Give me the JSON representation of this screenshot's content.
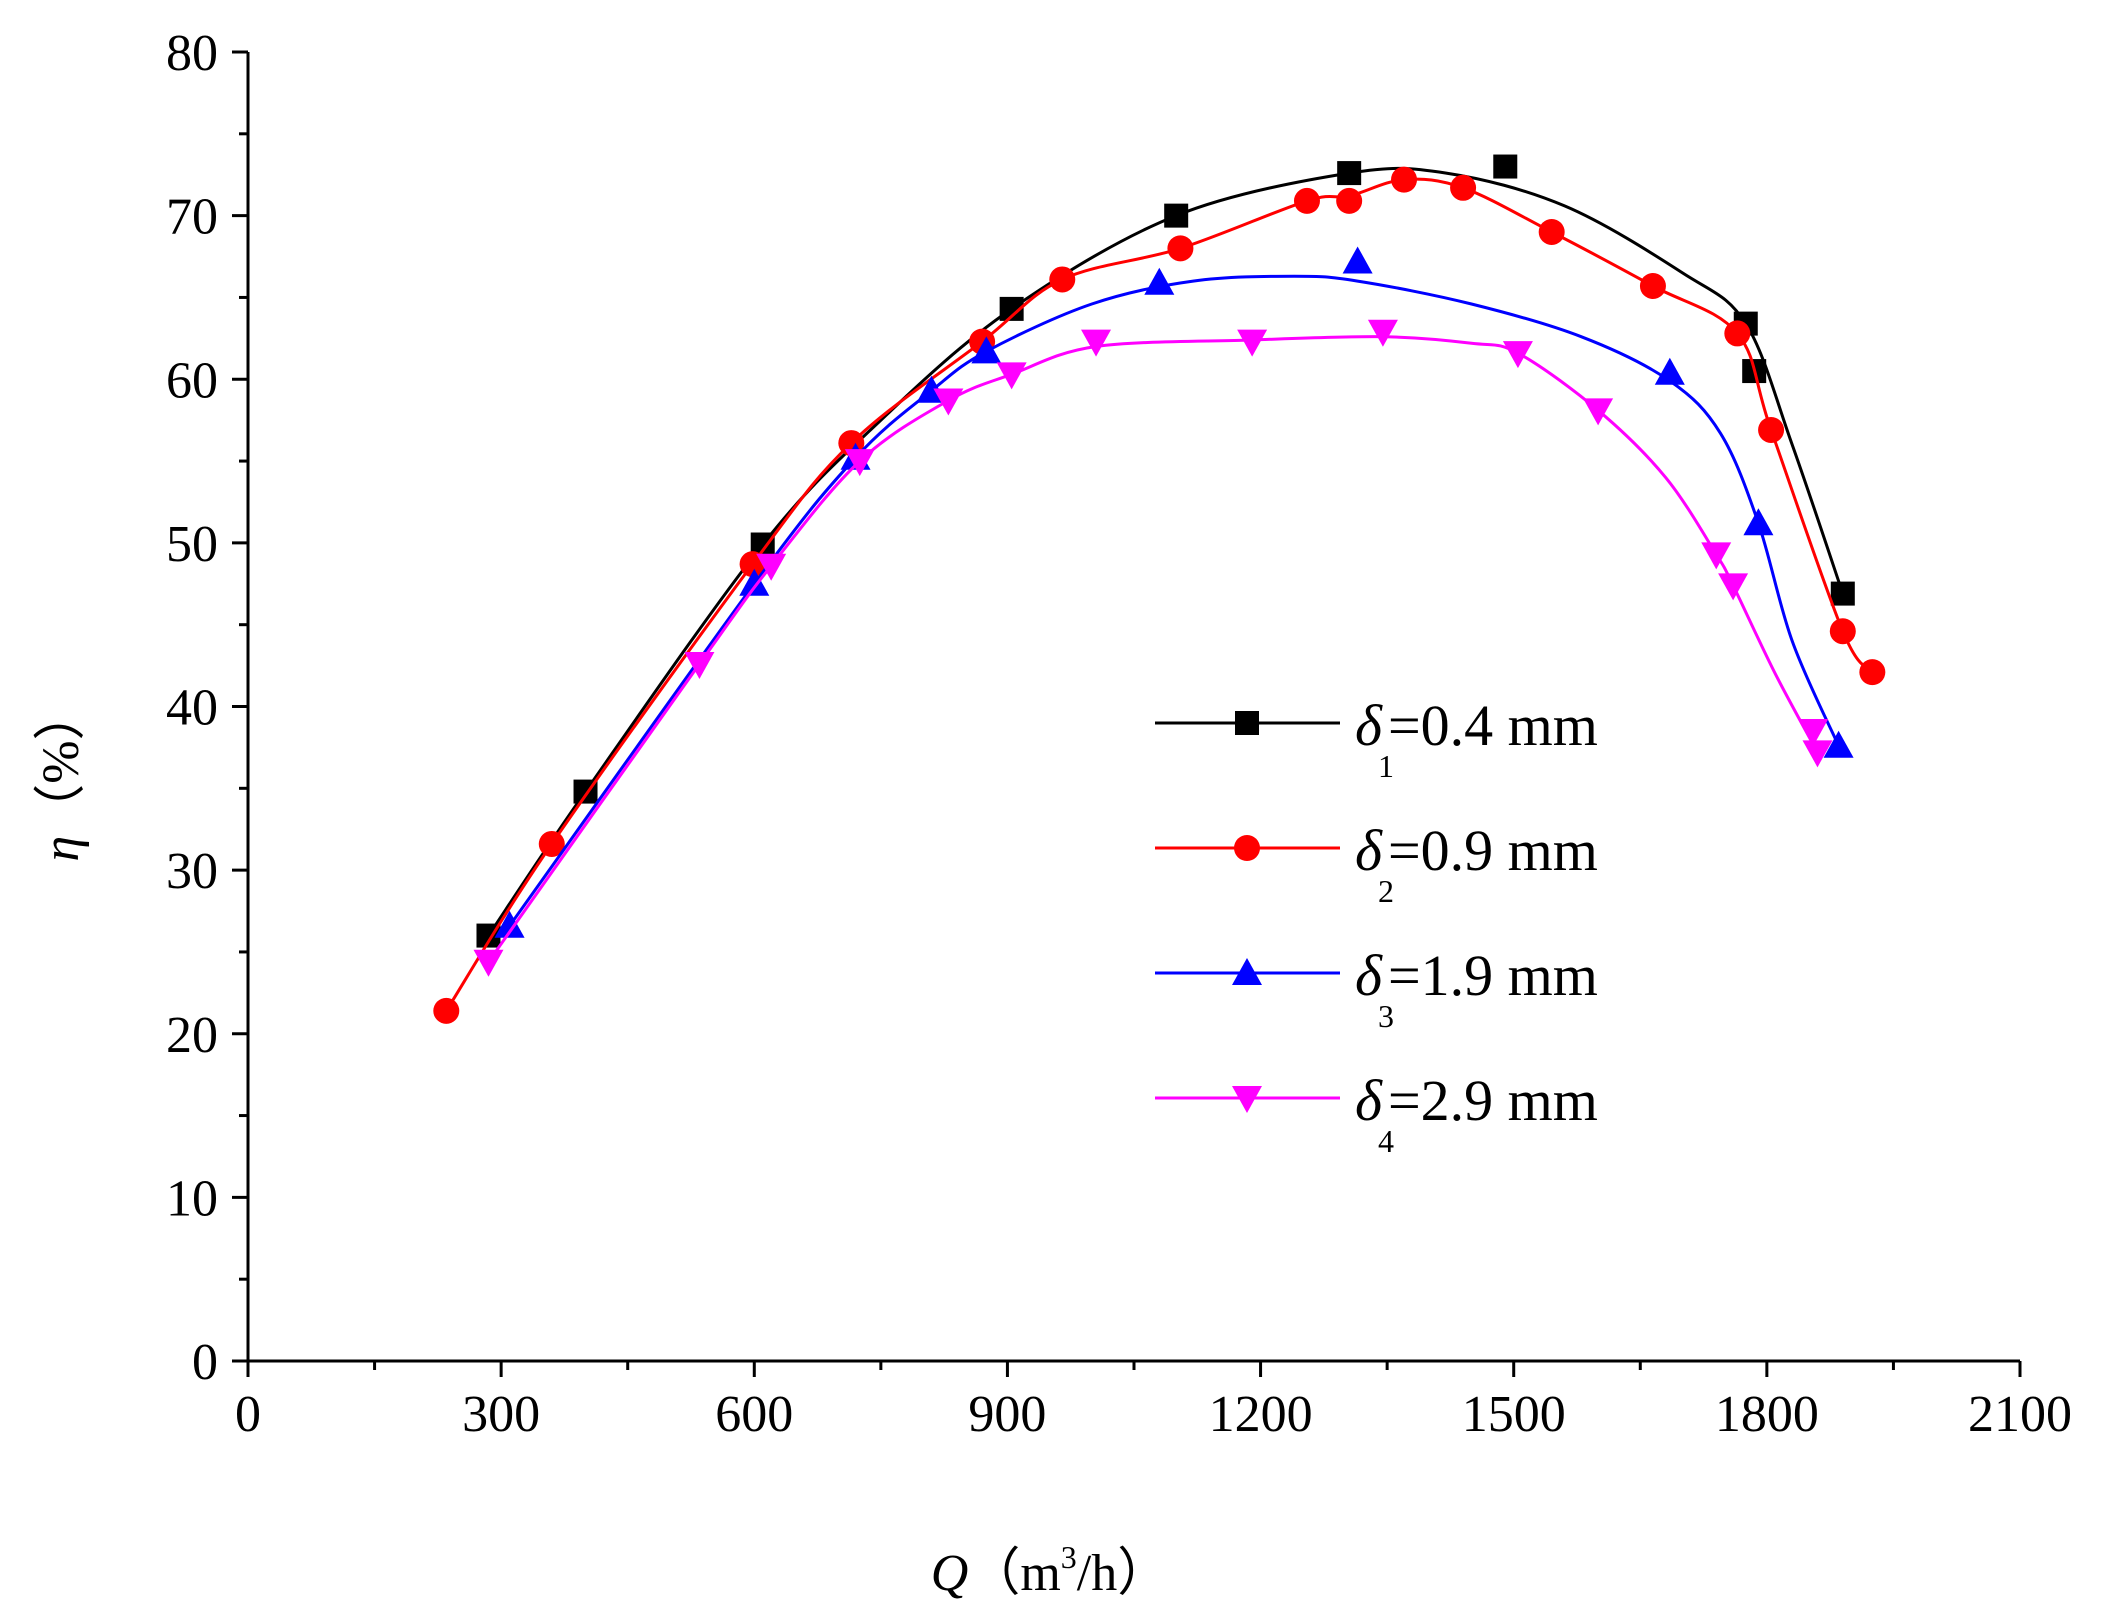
{
  "chart_data": {
    "type": "line",
    "title": "",
    "xlabel": {
      "symbol": "Q",
      "unit_pre": "（m",
      "unit_sup": "3",
      "unit_post": "/h）"
    },
    "ylabel": {
      "symbol": "η",
      "unit": "（%）"
    },
    "xlim": [
      0,
      2100
    ],
    "ylim": [
      0,
      80
    ],
    "x_ticks": [
      0,
      300,
      600,
      900,
      1200,
      1500,
      1800,
      2100
    ],
    "x_tick_labels": [
      "0",
      "300",
      "600",
      "900",
      "1200",
      "1500",
      "1800",
      "2100"
    ],
    "y_ticks": [
      0,
      10,
      20,
      30,
      40,
      50,
      60,
      70,
      80
    ],
    "y_tick_labels": [
      "0",
      "10",
      "20",
      "30",
      "40",
      "50",
      "60",
      "70",
      "80"
    ],
    "grid": false,
    "legend_position": "middle-right",
    "series": [
      {
        "name": "δ1=0.4 mm",
        "legend": {
          "symbol": "δ",
          "sub": "1",
          "text": "=0.4 mm"
        },
        "color": "#000000",
        "marker": "square",
        "points": [
          [
            285,
            26.0
          ],
          [
            400,
            34.8
          ],
          [
            610,
            49.9
          ],
          [
            905,
            64.3
          ],
          [
            1100,
            70.0
          ],
          [
            1305,
            72.6
          ],
          [
            1490,
            73.0
          ],
          [
            1775,
            63.4
          ],
          [
            1785,
            60.5
          ],
          [
            1890,
            46.9
          ]
        ],
        "curve": [
          [
            285,
            26.0
          ],
          [
            400,
            34.8
          ],
          [
            610,
            49.9
          ],
          [
            750,
            57.5
          ],
          [
            905,
            64.3
          ],
          [
            1100,
            70.0
          ],
          [
            1305,
            72.6
          ],
          [
            1420,
            72.6
          ],
          [
            1560,
            70.6
          ],
          [
            1700,
            66.5
          ],
          [
            1775,
            63.4
          ],
          [
            1830,
            56.0
          ],
          [
            1890,
            46.9
          ]
        ]
      },
      {
        "name": "δ2=0.9 mm",
        "legend": {
          "symbol": "δ",
          "sub": "2",
          "text": "=0.9 mm"
        },
        "color": "#ff0000",
        "marker": "circle",
        "points": [
          [
            235,
            21.4
          ],
          [
            360,
            31.6
          ],
          [
            598,
            48.7
          ],
          [
            715,
            56.1
          ],
          [
            870,
            62.3
          ],
          [
            965,
            66.1
          ],
          [
            1105,
            68.0
          ],
          [
            1255,
            70.9
          ],
          [
            1305,
            70.9
          ],
          [
            1370,
            72.2
          ],
          [
            1440,
            71.7
          ],
          [
            1545,
            69.0
          ],
          [
            1665,
            65.7
          ],
          [
            1765,
            62.8
          ],
          [
            1805,
            56.9
          ],
          [
            1890,
            44.6
          ],
          [
            1925,
            42.1
          ]
        ],
        "curve": [
          [
            235,
            21.4
          ],
          [
            360,
            31.6
          ],
          [
            598,
            48.7
          ],
          [
            715,
            56.1
          ],
          [
            870,
            62.3
          ],
          [
            965,
            66.1
          ],
          [
            1105,
            68.0
          ],
          [
            1255,
            70.9
          ],
          [
            1305,
            71.2
          ],
          [
            1370,
            72.2
          ],
          [
            1440,
            71.7
          ],
          [
            1545,
            69.0
          ],
          [
            1665,
            65.7
          ],
          [
            1765,
            62.8
          ],
          [
            1805,
            56.9
          ],
          [
            1890,
            44.6
          ],
          [
            1925,
            42.1
          ]
        ]
      },
      {
        "name": "δ3=1.9 mm",
        "legend": {
          "symbol": "δ",
          "sub": "3",
          "text": "=1.9 mm"
        },
        "color": "#0000ff",
        "marker": "triangle-up",
        "points": [
          [
            310,
            26.6
          ],
          [
            600,
            47.5
          ],
          [
            720,
            55.2
          ],
          [
            810,
            59.3
          ],
          [
            875,
            61.7
          ],
          [
            1080,
            65.9
          ],
          [
            1315,
            67.2
          ],
          [
            1685,
            60.4
          ],
          [
            1790,
            51.2
          ],
          [
            1885,
            37.6
          ]
        ],
        "curve": [
          [
            310,
            26.6
          ],
          [
            600,
            47.5
          ],
          [
            720,
            55.2
          ],
          [
            810,
            59.3
          ],
          [
            875,
            61.7
          ],
          [
            1000,
            64.6
          ],
          [
            1120,
            66.0
          ],
          [
            1240,
            66.3
          ],
          [
            1315,
            66.0
          ],
          [
            1450,
            64.6
          ],
          [
            1580,
            62.6
          ],
          [
            1685,
            59.9
          ],
          [
            1745,
            56.7
          ],
          [
            1790,
            51.2
          ],
          [
            1830,
            44.0
          ],
          [
            1885,
            37.6
          ]
        ]
      },
      {
        "name": "δ4=2.9 mm",
        "legend": {
          "symbol": "δ",
          "sub": "4",
          "text": "=2.9 mm"
        },
        "color": "#ff00ff",
        "marker": "triangle-down",
        "points": [
          [
            285,
            24.4
          ],
          [
            535,
            42.6
          ],
          [
            620,
            48.6
          ],
          [
            725,
            55.0
          ],
          [
            830,
            58.7
          ],
          [
            905,
            60.3
          ],
          [
            1005,
            62.3
          ],
          [
            1190,
            62.3
          ],
          [
            1345,
            62.9
          ],
          [
            1505,
            61.6
          ],
          [
            1600,
            58.1
          ],
          [
            1740,
            49.3
          ],
          [
            1760,
            47.4
          ],
          [
            1855,
            38.5
          ],
          [
            1860,
            37.2
          ]
        ],
        "curve": [
          [
            285,
            24.4
          ],
          [
            535,
            42.6
          ],
          [
            620,
            48.6
          ],
          [
            725,
            55.0
          ],
          [
            830,
            58.7
          ],
          [
            905,
            60.3
          ],
          [
            1005,
            62.0
          ],
          [
            1190,
            62.4
          ],
          [
            1345,
            62.6
          ],
          [
            1450,
            62.2
          ],
          [
            1505,
            61.6
          ],
          [
            1600,
            58.1
          ],
          [
            1680,
            54.0
          ],
          [
            1740,
            49.3
          ],
          [
            1760,
            47.4
          ],
          [
            1810,
            42.0
          ],
          [
            1860,
            37.2
          ]
        ]
      }
    ]
  }
}
